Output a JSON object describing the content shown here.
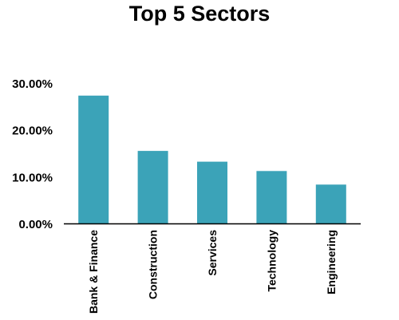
{
  "chart_data": {
    "type": "bar",
    "title": "Top 5 Sectors",
    "categories": [
      "Bank & Finance",
      "Construction",
      "Services",
      "Technology",
      "Engineering"
    ],
    "values": [
      27.3,
      15.5,
      13.2,
      11.2,
      8.3
    ],
    "ylim": [
      0,
      30
    ],
    "yticks": [
      0,
      10,
      20,
      30
    ],
    "ytick_labels": [
      "0.00%",
      "10.00%",
      "20.00%",
      "30.00%"
    ],
    "xlabel": "",
    "ylabel": "",
    "grid": false,
    "legend": "none",
    "bar_color": "#3BA3B8",
    "axis_color": "#000000"
  }
}
